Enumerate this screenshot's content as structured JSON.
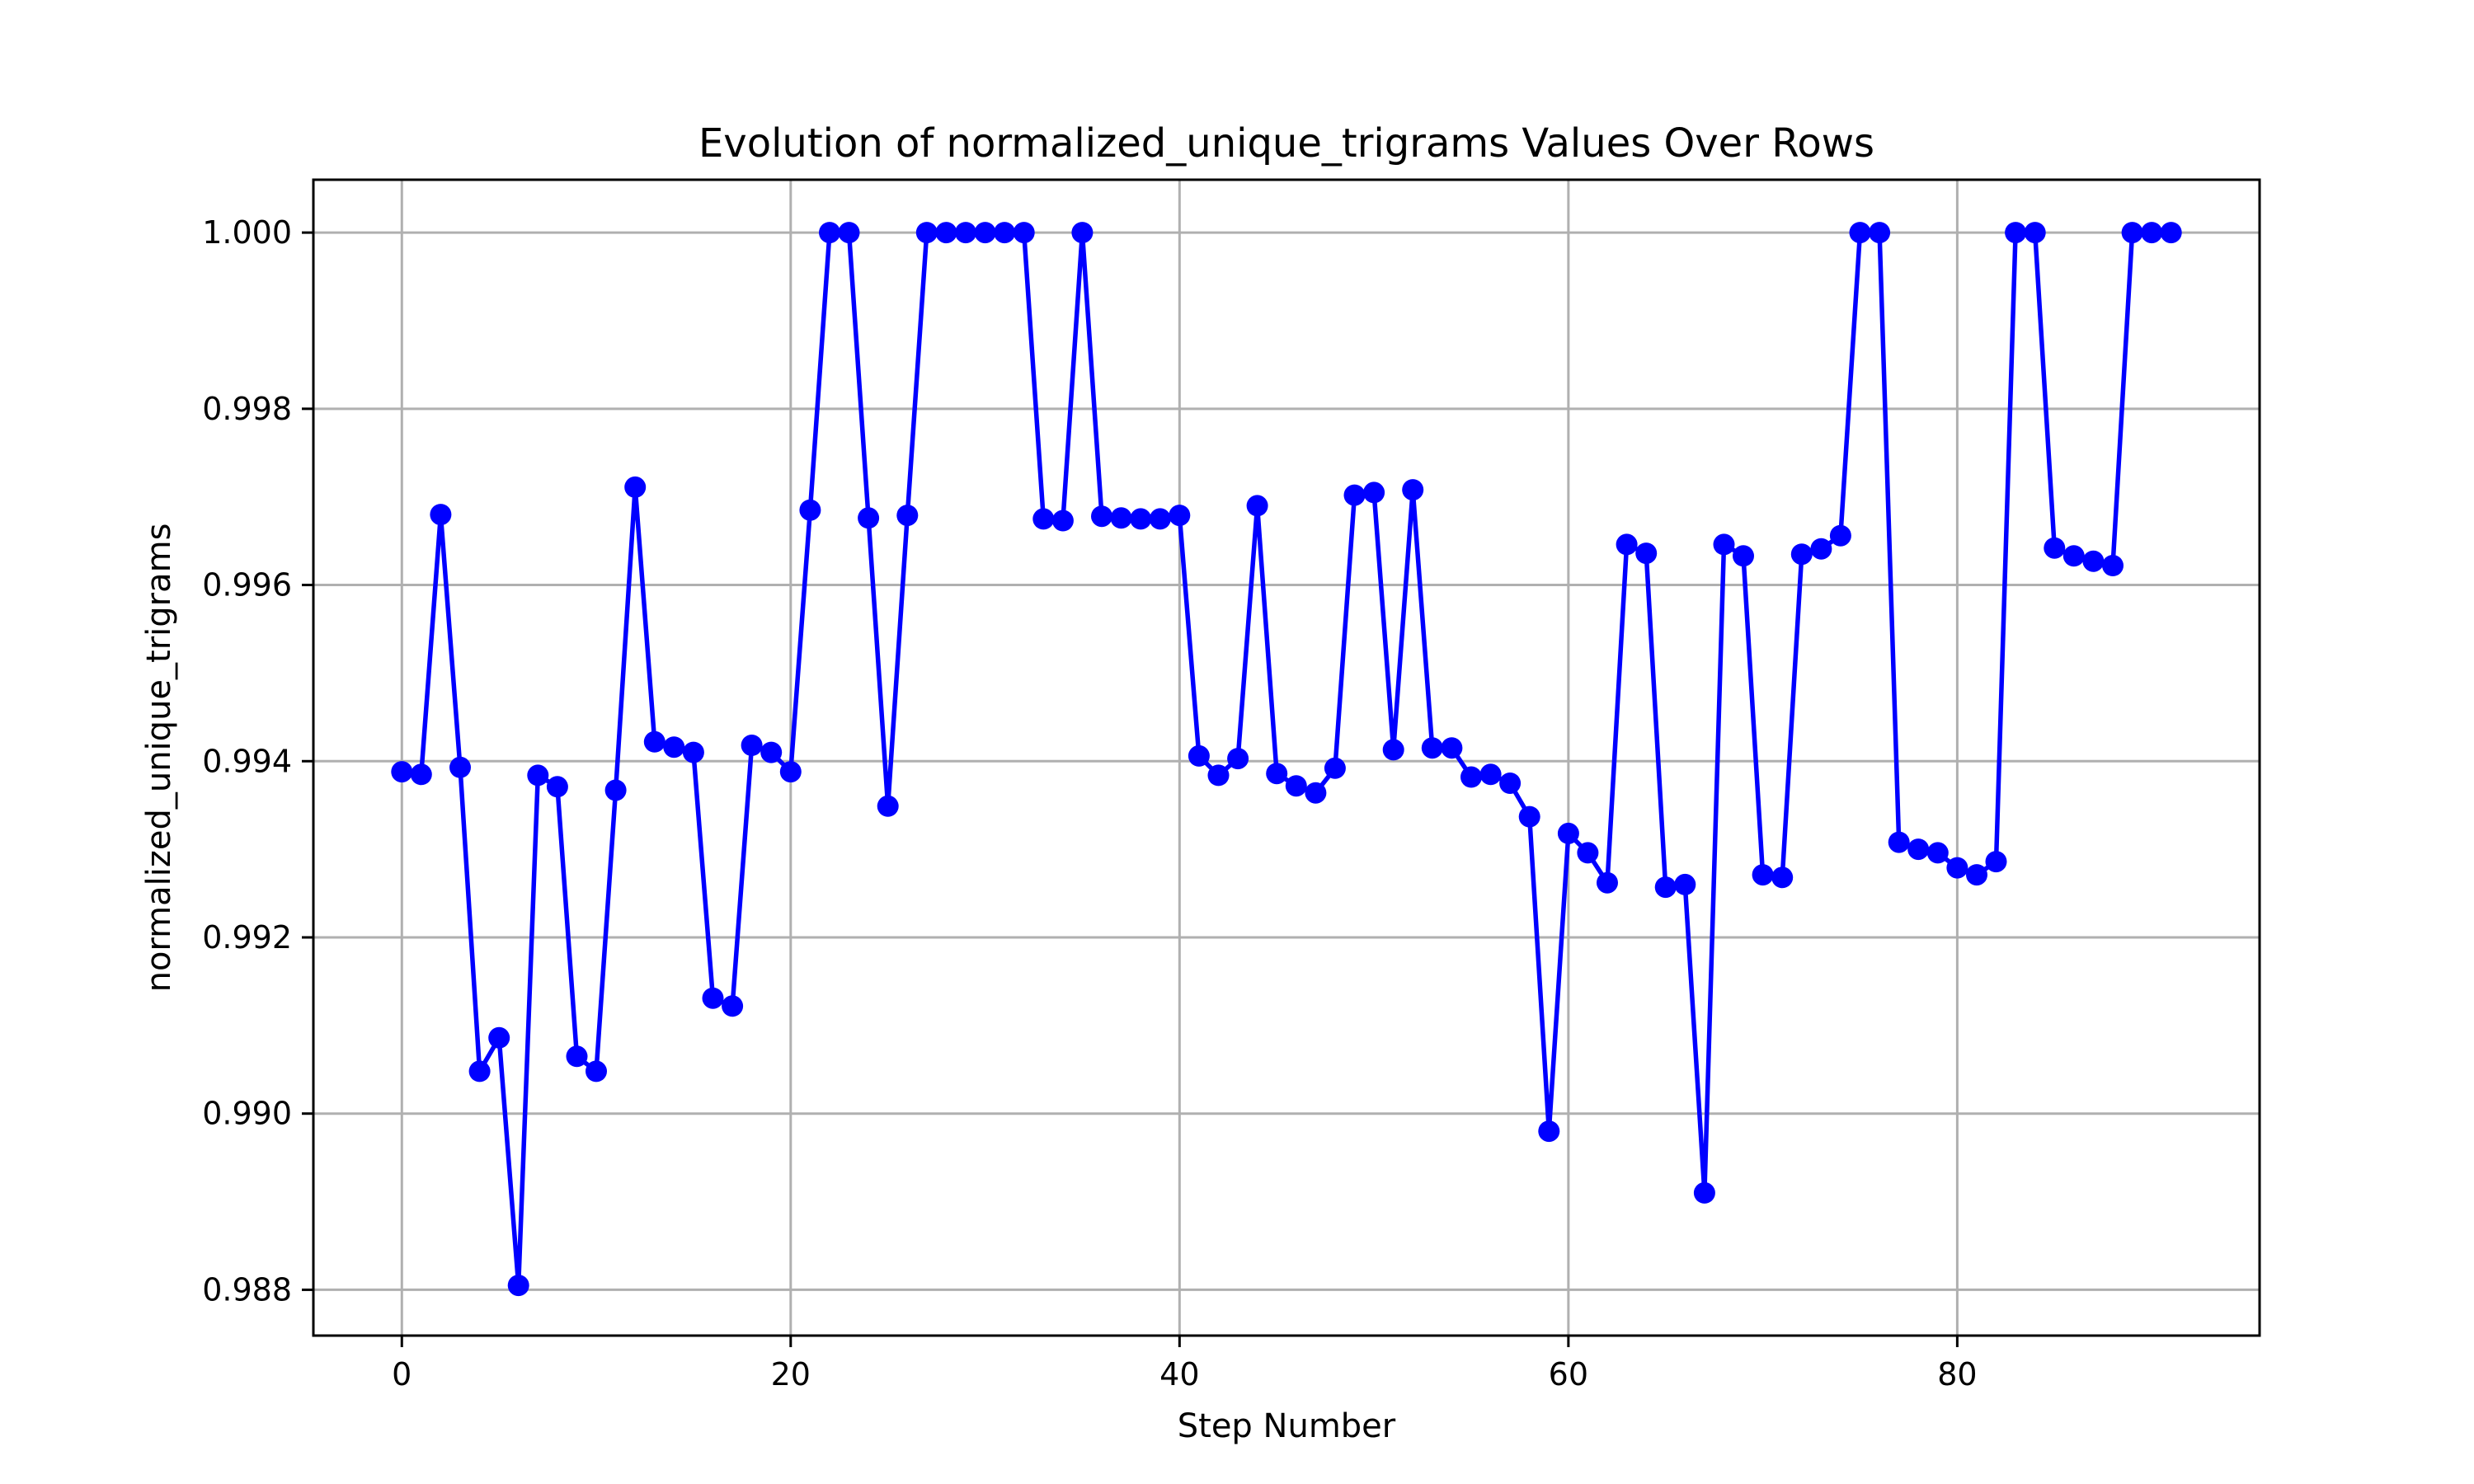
{
  "chart_data": {
    "type": "line",
    "title": "Evolution of normalized_unique_trigrams Values Over Rows",
    "xlabel": "Step Number",
    "ylabel": "normalized_unique_trigrams",
    "xlim": [
      -4.55,
      95.55
    ],
    "ylim": [
      0.98748,
      1.0006
    ],
    "xticks": [
      0,
      20,
      40,
      60,
      80
    ],
    "yticks": [
      0.988,
      0.99,
      0.992,
      0.994,
      0.996,
      0.998,
      1.0
    ],
    "ytick_labels": [
      "0.988",
      "0.990",
      "0.992",
      "0.994",
      "0.996",
      "0.998",
      "1.000"
    ],
    "grid": true,
    "series": [
      {
        "color": "#0000ff",
        "marker": "circle",
        "x": [
          0,
          1,
          2,
          3,
          4,
          5,
          6,
          7,
          8,
          9,
          10,
          11,
          12,
          13,
          14,
          15,
          16,
          17,
          18,
          19,
          20,
          21,
          22,
          23,
          24,
          25,
          26,
          27,
          28,
          29,
          30,
          31,
          32,
          33,
          34,
          35,
          36,
          37,
          38,
          39,
          40,
          41,
          42,
          43,
          44,
          45,
          46,
          47,
          48,
          49,
          50,
          51,
          52,
          53,
          54,
          55,
          56,
          57,
          58,
          59,
          60,
          61,
          62,
          63,
          64,
          65,
          66,
          67,
          68,
          69,
          70,
          71,
          72,
          73,
          74,
          75,
          76,
          77,
          78,
          79,
          80,
          81,
          82,
          83,
          84,
          85,
          86,
          87,
          88,
          89,
          90,
          91
        ],
        "y": [
          0.99388,
          0.99385,
          0.9968,
          0.99393,
          0.99048,
          0.99086,
          0.98805,
          0.99384,
          0.99371,
          0.99065,
          0.99048,
          0.99367,
          0.99711,
          0.99422,
          0.99416,
          0.9941,
          0.99131,
          0.99122,
          0.99418,
          0.9941,
          0.99388,
          0.99685,
          1.0,
          1.0,
          0.99676,
          0.99349,
          0.99679,
          1.0,
          1.0,
          1.0,
          1.0,
          1.0,
          1.0,
          0.99675,
          0.99673,
          1.0,
          0.99678,
          0.99676,
          0.99675,
          0.99675,
          0.99679,
          0.99406,
          0.99384,
          0.99403,
          0.9969,
          0.99386,
          0.99372,
          0.99364,
          0.99392,
          0.99702,
          0.99705,
          0.99413,
          0.99708,
          0.99415,
          0.99415,
          0.99382,
          0.99385,
          0.99375,
          0.99337,
          0.9898,
          0.99318,
          0.99296,
          0.99262,
          0.99646,
          0.99636,
          0.99257,
          0.9926,
          0.9891,
          0.99646,
          0.99633,
          0.99271,
          0.99268,
          0.99635,
          0.99641,
          0.99656,
          1.0,
          1.0,
          0.99308,
          0.993,
          0.99296,
          0.99279,
          0.99271,
          0.99286,
          1.0,
          1.0,
          0.99642,
          0.99633,
          0.99627,
          0.99622,
          1.0,
          1.0,
          1.0
        ]
      }
    ]
  }
}
